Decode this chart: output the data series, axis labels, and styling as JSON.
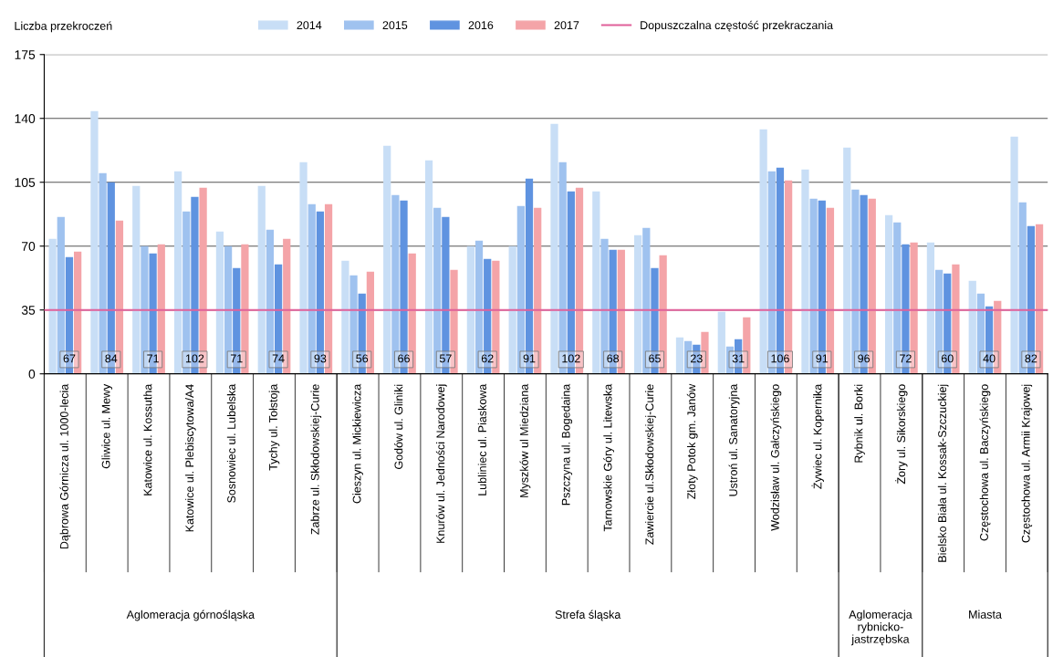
{
  "chart_data": {
    "type": "bar",
    "ylabel": "Liczba przekroczeń",
    "categories": [
      "Dąbrowa Górnicza ul. 1000-lecia",
      "Gliwice ul. Mewy",
      "Katowice ul. Kossutha",
      "Katowice ul. Plebiscytowa/A4",
      "Sosnowiec ul. Lubelska",
      "Tychy ul. Tołstoja",
      "Zabrze ul. Skłodowskiej-Curie",
      "Cieszyn ul. Mickiewicza",
      "Godów ul. Gliniki",
      "Knurów ul. Jedności Narodowej",
      "Lubliniec ul. Piaskowa",
      "Myszków ul Miedziana",
      "Pszczyna ul. Bogedaina",
      "Tarnowskie Góry ul. Litewska",
      "Zawiercie ul.Skłodowskiej-Curie",
      "Złoty Potok gm. Janów",
      "Ustroń ul. Sanatoryjna",
      "Wodzisław ul. Gałczyńskiego",
      "Żywiec ul. Kopernika",
      "Rybnik ul. Borki",
      "Żory ul. Sikorskiego",
      "Bielsko Biała ul. Kossak-Szczuckiej",
      "Częstochowa ul. Baczyńskiego",
      "Częstochowa ul. Armii Krajowej"
    ],
    "series": [
      {
        "name": "2014",
        "color": "#c8def6",
        "values": [
          74,
          144,
          103,
          111,
          78,
          103,
          116,
          62,
          125,
          117,
          70,
          70,
          137,
          100,
          76,
          20,
          34,
          134,
          112,
          124,
          87,
          72,
          51,
          130
        ]
      },
      {
        "name": "2015",
        "color": "#9fc2ef",
        "values": [
          86,
          110,
          70,
          89,
          70,
          79,
          93,
          54,
          98,
          91,
          73,
          92,
          116,
          74,
          80,
          18,
          15,
          111,
          96,
          101,
          83,
          57,
          44,
          94
        ]
      },
      {
        "name": "2016",
        "color": "#5f93e0",
        "values": [
          64,
          105,
          66,
          97,
          58,
          60,
          89,
          44,
          95,
          86,
          63,
          107,
          100,
          68,
          58,
          16,
          19,
          113,
          95,
          98,
          71,
          55,
          37,
          81
        ]
      },
      {
        "name": "2017",
        "color": "#f4a4a8",
        "values": [
          67,
          84,
          71,
          102,
          71,
          74,
          93,
          56,
          66,
          57,
          62,
          91,
          102,
          68,
          65,
          23,
          31,
          106,
          91,
          96,
          72,
          60,
          40,
          82
        ],
        "data_labels": true
      }
    ],
    "ylim": [
      0,
      175
    ],
    "yticks": [
      0,
      35,
      70,
      105,
      140,
      175
    ],
    "grid": "y",
    "legend": "top",
    "ref_lines": [
      {
        "axis": "y",
        "value": 35,
        "label": "Dopuszczalna częstość przekraczania",
        "color": "#e0609a"
      }
    ],
    "annotations": [
      "Aglomeracja górnośląska",
      "Strefa śląska",
      "Aglomeracja rybnicko-jastrzębska",
      "Miasta"
    ]
  }
}
